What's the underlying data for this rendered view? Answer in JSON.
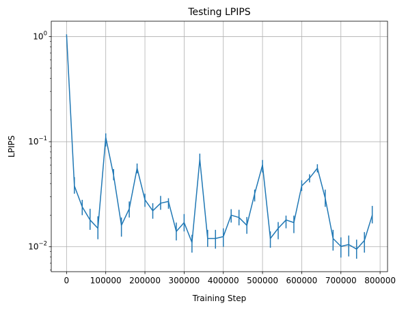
{
  "chart_data": {
    "type": "line",
    "title": "Testing LPIPS",
    "xlabel": "Training Step",
    "ylabel": "LPIPS",
    "y_scale": "log",
    "xlim": [
      -39000,
      819000
    ],
    "ylim": [
      0.0058,
      1.4
    ],
    "grid": true,
    "x_ticks": [
      0,
      100000,
      200000,
      300000,
      400000,
      500000,
      600000,
      700000,
      800000
    ],
    "y_ticks": [
      {
        "value": 0.01,
        "base": "10",
        "exp": "−2"
      },
      {
        "value": 0.1,
        "base": "10",
        "exp": "−1"
      },
      {
        "value": 1,
        "base": "10",
        "exp": "0"
      }
    ],
    "color": "#1f77b4",
    "series": [
      {
        "x": [
          0,
          20000,
          40000,
          60000,
          80000,
          100000,
          120000,
          140000,
          160000,
          180000,
          200000,
          220000,
          240000,
          260000,
          280000,
          300000,
          320000,
          340000,
          360000,
          380000,
          400000,
          420000,
          440000,
          460000,
          480000,
          500000,
          520000,
          540000,
          560000,
          580000,
          600000,
          620000,
          640000,
          660000,
          680000,
          700000,
          720000,
          740000,
          760000,
          780000
        ],
        "y": [
          1.05,
          0.038,
          0.024,
          0.018,
          0.015,
          0.11,
          0.048,
          0.016,
          0.023,
          0.056,
          0.028,
          0.022,
          0.026,
          0.027,
          0.014,
          0.017,
          0.011,
          0.068,
          0.012,
          0.012,
          0.0125,
          0.02,
          0.019,
          0.016,
          0.032,
          0.06,
          0.012,
          0.015,
          0.018,
          0.017,
          0.038,
          0.045,
          0.056,
          0.029,
          0.012,
          0.0101,
          0.0105,
          0.0095,
          0.0115,
          0.02
        ],
        "err_low": [
          1.05,
          0.032,
          0.02,
          0.0145,
          0.0118,
          0.09,
          0.043,
          0.0125,
          0.019,
          0.05,
          0.024,
          0.0185,
          0.0225,
          0.023,
          0.0115,
          0.014,
          0.0088,
          0.06,
          0.01,
          0.0096,
          0.01,
          0.017,
          0.016,
          0.0133,
          0.027,
          0.051,
          0.0098,
          0.0118,
          0.015,
          0.0135,
          0.034,
          0.041,
          0.051,
          0.024,
          0.0092,
          0.0079,
          0.0081,
          0.0077,
          0.0088,
          0.0167
        ],
        "err_high": [
          1.05,
          0.046,
          0.028,
          0.023,
          0.0195,
          0.12,
          0.055,
          0.019,
          0.027,
          0.062,
          0.032,
          0.026,
          0.0305,
          0.029,
          0.017,
          0.0205,
          0.013,
          0.077,
          0.0145,
          0.0145,
          0.015,
          0.0228,
          0.0225,
          0.0192,
          0.035,
          0.067,
          0.014,
          0.0172,
          0.0198,
          0.0198,
          0.043,
          0.049,
          0.061,
          0.035,
          0.0145,
          0.0123,
          0.0128,
          0.0117,
          0.0138,
          0.0245
        ]
      }
    ]
  }
}
